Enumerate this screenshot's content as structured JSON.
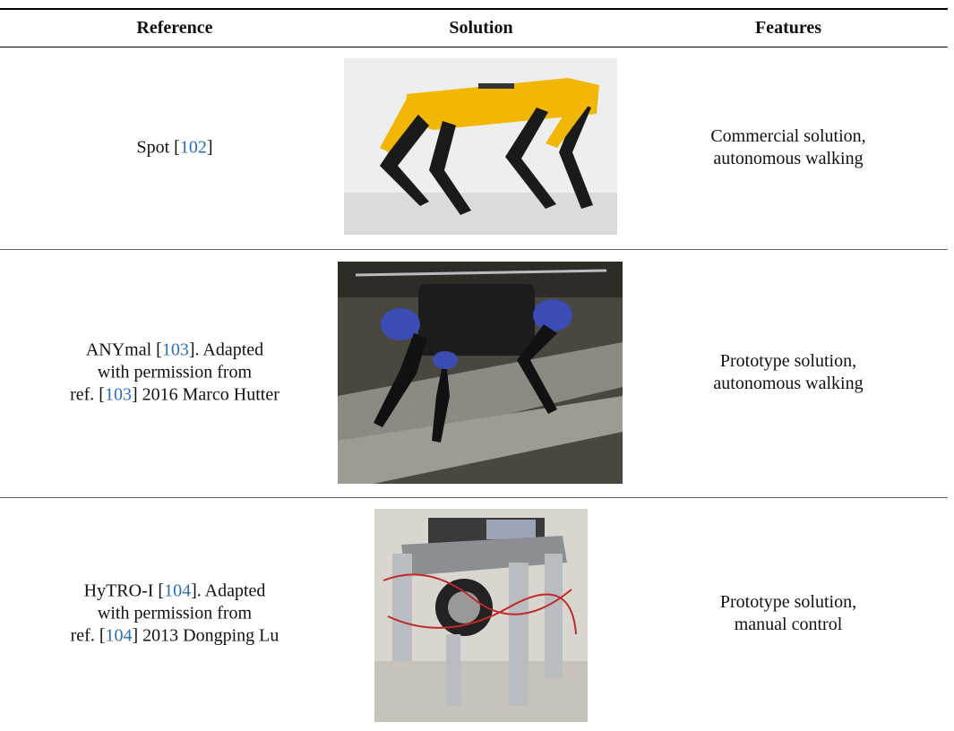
{
  "header": {
    "columns": [
      "Reference",
      "Solution",
      "Features"
    ]
  },
  "rows": [
    {
      "reference": [
        [
          "Spot [",
          "102",
          "]"
        ]
      ],
      "features": [
        "Commercial solution,",
        "autonomous walking"
      ]
    },
    {
      "reference": [
        [
          "ANYmal [",
          "103",
          "]. Adapted"
        ],
        [
          "with permission from"
        ],
        [
          "ref. [",
          "103",
          "] 2016 Marco Hutter"
        ]
      ],
      "features": [
        "Prototype solution,",
        "autonomous walking"
      ]
    },
    {
      "reference": [
        [
          "HyTRO-I [",
          "104",
          "]. Adapted"
        ],
        [
          "with permission from"
        ],
        [
          "ref. [",
          "104",
          "] 2013 Dongping Lu"
        ]
      ],
      "features": [
        "Prototype solution,",
        "manual control"
      ]
    }
  ]
}
